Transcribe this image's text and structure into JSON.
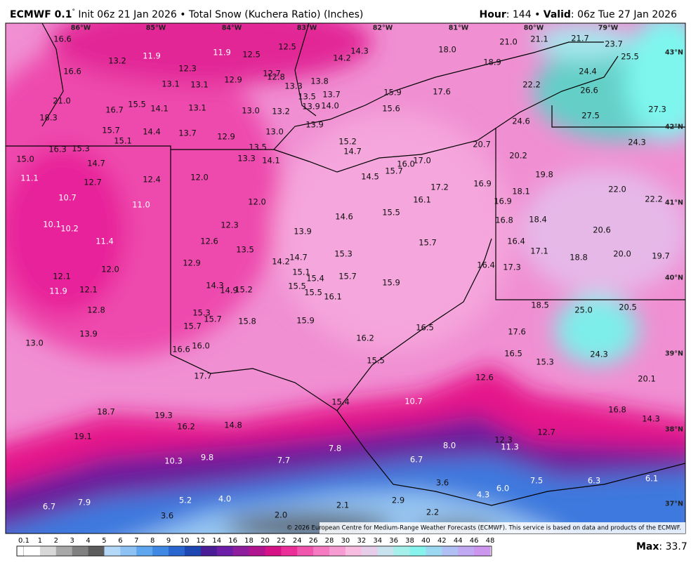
{
  "header": {
    "model": "ECMWF 0.1",
    "degree": "°",
    "title": " Init 06z 21 Jan 2026 • Total Snow (Kuchera Ratio) (Inches)",
    "hour_label": "Hour",
    "hour": ": 144 • ",
    "valid_label": "Valid",
    "valid": ": 06z Tue 27 Jan 2026"
  },
  "map": {
    "lon_labels": [
      "86°W",
      "85°W",
      "84°W",
      "83°W",
      "82°W",
      "81°W",
      "80°W",
      "79°W"
    ],
    "lat_labels": [
      "43°N",
      "42°N",
      "41°N",
      "40°N",
      "39°N",
      "38°N",
      "37°N"
    ],
    "values": [
      "16.6",
      "13.2",
      "11.9",
      "11.9",
      "12.5",
      "12.5",
      "14.3",
      "14.2",
      "18.0",
      "21.0",
      "21.1",
      "21.7",
      "23.7",
      "25.5",
      "16.6",
      "12.3",
      "12.7",
      "12.8",
      "18.9",
      "24.4",
      "13.1",
      "13.1",
      "12.9",
      "13.3",
      "13.8",
      "22.2",
      "26.6",
      "21.0",
      "13.5",
      "13.7",
      "15.9",
      "17.6",
      "16.7",
      "15.5",
      "14.1",
      "13.1",
      "13.0",
      "13.2",
      "13.9",
      "14.0",
      "15.6",
      "27.5",
      "27.3",
      "18.3",
      "13.9",
      "24.6",
      "15.7",
      "14.4",
      "13.7",
      "12.9",
      "13.0",
      "15.1",
      "15.2",
      "20.7",
      "24.3",
      "16.3",
      "15.3",
      "13.5",
      "14.7",
      "15.0",
      "13.3",
      "14.1",
      "16.0",
      "17.0",
      "20.2",
      "14.7",
      "15.7",
      "19.8",
      "11.1",
      "12.7",
      "12.4",
      "12.0",
      "14.5",
      "17.2",
      "16.9",
      "18.1",
      "22.0",
      "10.7",
      "11.0",
      "12.0",
      "16.1",
      "16.9",
      "22.2",
      "15.5",
      "14.6",
      "16.8",
      "18.4",
      "10.1",
      "10.2",
      "12.3",
      "13.9",
      "20.6",
      "11.4",
      "12.6",
      "13.5",
      "15.3",
      "15.7",
      "16.4",
      "14.7",
      "14.2",
      "17.1",
      "18.8",
      "20.0",
      "19.7",
      "12.0",
      "12.9",
      "15.1",
      "16.4",
      "17.3",
      "12.1",
      "15.4",
      "15.7",
      "11.9",
      "12.1",
      "14.3",
      "14.9",
      "15.2",
      "15.5",
      "15.9",
      "15.5",
      "16.1",
      "12.8",
      "18.5",
      "25.0",
      "20.5",
      "15.3",
      "15.7",
      "15.7",
      "15.8",
      "15.9",
      "16.5",
      "13.9",
      "17.6",
      "13.0",
      "16.2",
      "16.6",
      "16.0",
      "16.5",
      "24.3",
      "15.5",
      "15.3",
      "17.7",
      "12.6",
      "20.1",
      "15.4",
      "10.7",
      "18.7",
      "19.3",
      "16.8",
      "16.2",
      "14.8",
      "14.3",
      "19.1",
      "12.7",
      "12.3",
      "8.0",
      "7.8",
      "11.3",
      "10.3",
      "9.8",
      "7.7",
      "6.7",
      "7.5",
      "6.3",
      "6.1",
      "3.6",
      "6.0",
      "4.3",
      "5.2",
      "4.0",
      "2.1",
      "2.9",
      "6.7",
      "7.9",
      "2.2",
      "3.6",
      "2.0"
    ]
  },
  "copyright": "© 2026 European Centre for Medium-Range Weather Forecasts (ECMWF). This service is based on data and products of the ECMWF.",
  "legend": {
    "ticks": [
      "0.1",
      "1",
      "2",
      "3",
      "4",
      "5",
      "6",
      "7",
      "8",
      "9",
      "10",
      "12",
      "14",
      "16",
      "18",
      "20",
      "22",
      "24",
      "26",
      "28",
      "30",
      "32",
      "34",
      "36",
      "38",
      "40",
      "42",
      "44",
      "46",
      "48"
    ]
  },
  "footer": {
    "max_label": "Max",
    "max": ": 33.7"
  }
}
